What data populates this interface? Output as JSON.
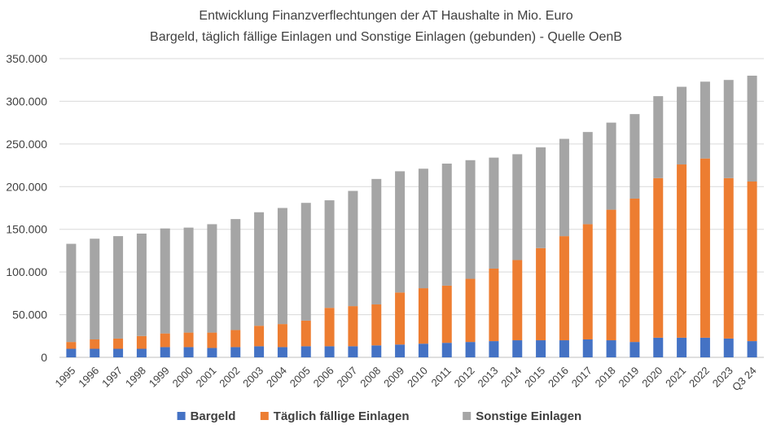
{
  "chart_data": {
    "type": "bar",
    "stacked": true,
    "title": "Entwicklung Finanzverflechtungen der AT Haushalte in Mio. Euro",
    "subtitle": "Bargeld, täglich fällige Einlagen und Sonstige Einlagen (gebunden) - Quelle OenB",
    "xlabel": "",
    "ylabel": "",
    "ylim": [
      0,
      350000
    ],
    "yticks": [
      0,
      50000,
      100000,
      150000,
      200000,
      250000,
      300000,
      350000
    ],
    "ytick_labels": [
      "0",
      "50.000",
      "100.000",
      "150.000",
      "200.000",
      "250.000",
      "300.000",
      "350.000"
    ],
    "grid": true,
    "legend_position": "bottom",
    "categories": [
      "1995",
      "1996",
      "1997",
      "1998",
      "1999",
      "2000",
      "2001",
      "2002",
      "2003",
      "2004",
      "2005",
      "2006",
      "2007",
      "2008",
      "2009",
      "2010",
      "2011",
      "2012",
      "2013",
      "2014",
      "2015",
      "2016",
      "2017",
      "2018",
      "2019",
      "2020",
      "2021",
      "2022",
      "2023",
      "Q3 24"
    ],
    "series": [
      {
        "name": "Bargeld",
        "color": "#4472c4",
        "values": [
          10000,
          10000,
          10000,
          10000,
          12000,
          12000,
          11000,
          12000,
          13000,
          12000,
          13000,
          13000,
          13000,
          14000,
          15000,
          16000,
          17000,
          18000,
          19000,
          20000,
          20000,
          20000,
          21000,
          20000,
          18000,
          23000,
          23000,
          23000,
          22000,
          19000
        ]
      },
      {
        "name": "Täglich fällige Einlagen",
        "color": "#ed7d31",
        "values": [
          8000,
          11000,
          12000,
          15000,
          16000,
          17000,
          18000,
          20000,
          24000,
          27000,
          30000,
          45000,
          47000,
          48000,
          61000,
          65000,
          67000,
          74000,
          85000,
          94000,
          108000,
          122000,
          135000,
          153000,
          168000,
          187000,
          203000,
          210000,
          188000,
          187000
        ]
      },
      {
        "name": "Sonstige Einlagen",
        "color": "#a5a5a5",
        "values": [
          115000,
          118000,
          120000,
          120000,
          123000,
          123000,
          127000,
          130000,
          133000,
          136000,
          138000,
          126000,
          135000,
          147000,
          142000,
          140000,
          143000,
          139000,
          130000,
          124000,
          118000,
          114000,
          108000,
          102000,
          99000,
          96000,
          91000,
          90000,
          115000,
          124000
        ]
      }
    ]
  }
}
